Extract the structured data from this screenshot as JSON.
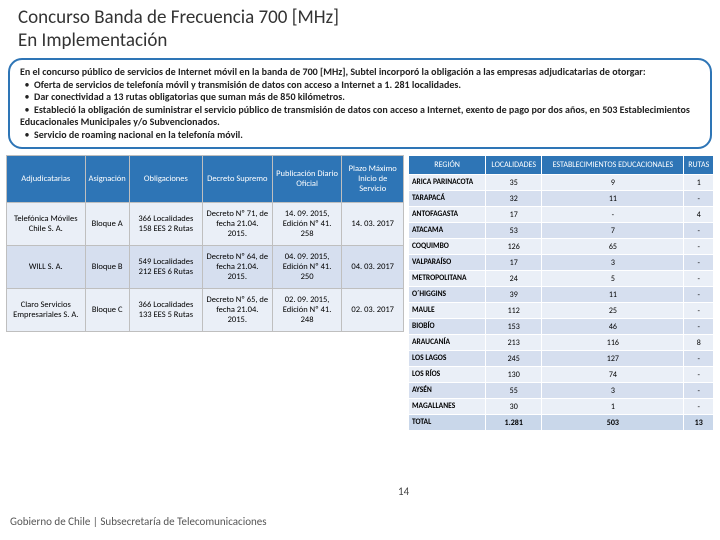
{
  "title": "Concurso Banda de Frecuencia 700 [MHz]\nEn Implementación",
  "intro": {
    "lead": "En el concurso público de servicios de Internet móvil en la banda de 700 [MHz], Subtel incorporó la obligación a las empresas adjudicatarias de otorgar:",
    "bullets": [
      "Oferta de servicios de telefonía móvil y transmisión de datos con acceso a Internet a 1. 281 localidades.",
      "Dar conectividad a 13 rutas obligatorias que suman más de 850 kilómetros.",
      "Estableció la obligación de suministrar el servicio público de transmisión de datos con acceso a Internet, exento de pago por dos años, en 503 Establecimientos Educacionales Municipales y/o Subvencionados.",
      "Servicio de roaming nacional en la telefonía móvil."
    ]
  },
  "t1": {
    "headers": [
      "Adjudicatarias",
      "Asignación",
      "Obligaciones",
      "Decreto Supremo",
      "Publicación Diario Oficial",
      "Plazo Máximo Inicio de Servicio"
    ],
    "rows": [
      {
        "c": [
          "Telefónica Móviles Chile S. A.",
          "Bloque A",
          "366 Localidades 158 EES 2 Rutas",
          "Decreto Nº 71, de fecha 21.04. 2015.",
          "14. 09. 2015, Edición Nº 41. 258",
          "14. 03. 2017"
        ]
      },
      {
        "c": [
          "WILL S. A.",
          "Bloque B",
          "549 Localidades 212 EES 6 Rutas",
          "Decreto Nº 64, de fecha 21.04. 2015.",
          "04. 09. 2015, Edición Nº 41. 250",
          "04. 03. 2017"
        ]
      },
      {
        "c": [
          "Claro Servicios Empresariales S. A.",
          "Bloque C",
          "366 Localidades 133 EES 5 Rutas",
          "Decreto Nº 65, de fecha 21.04. 2015.",
          "02. 09. 2015, Edición Nº 41. 248",
          "02. 03. 2017"
        ]
      }
    ]
  },
  "t2": {
    "headers": [
      "REGIÓN",
      "LOCALIDADES",
      "ESTABLECIMIENTOS EDUCACIONALES",
      "RUTAS"
    ],
    "rows": [
      [
        "ARICA PARINACOTA",
        "35",
        "9",
        "1"
      ],
      [
        "TARAPACÁ",
        "32",
        "11",
        "-"
      ],
      [
        "ANTOFAGASTA",
        "17",
        "-",
        "4"
      ],
      [
        "ATACAMA",
        "53",
        "7",
        "-"
      ],
      [
        "COQUIMBO",
        "126",
        "65",
        "-"
      ],
      [
        "VALPARAÍSO",
        "17",
        "3",
        "-"
      ],
      [
        "METROPOLITANA",
        "24",
        "5",
        "-"
      ],
      [
        "O´HIGGINS",
        "39",
        "11",
        "-"
      ],
      [
        "MAULE",
        "112",
        "25",
        "-"
      ],
      [
        "BIOBÍO",
        "153",
        "46",
        "-"
      ],
      [
        "ARAUCANÍA",
        "213",
        "116",
        "8"
      ],
      [
        "LOS LAGOS",
        "245",
        "127",
        "-"
      ],
      [
        "LOS RÍOS",
        "130",
        "74",
        "-"
      ],
      [
        "AYSÉN",
        "55",
        "3",
        "-"
      ],
      [
        "MAGALLANES",
        "30",
        "1",
        "-"
      ]
    ],
    "total": [
      "TOTAL",
      "1.281",
      "503",
      "13"
    ]
  },
  "footer": "Gobierno de Chile | Subsecretaría de Telecomunicaciones",
  "pagenum": "14"
}
